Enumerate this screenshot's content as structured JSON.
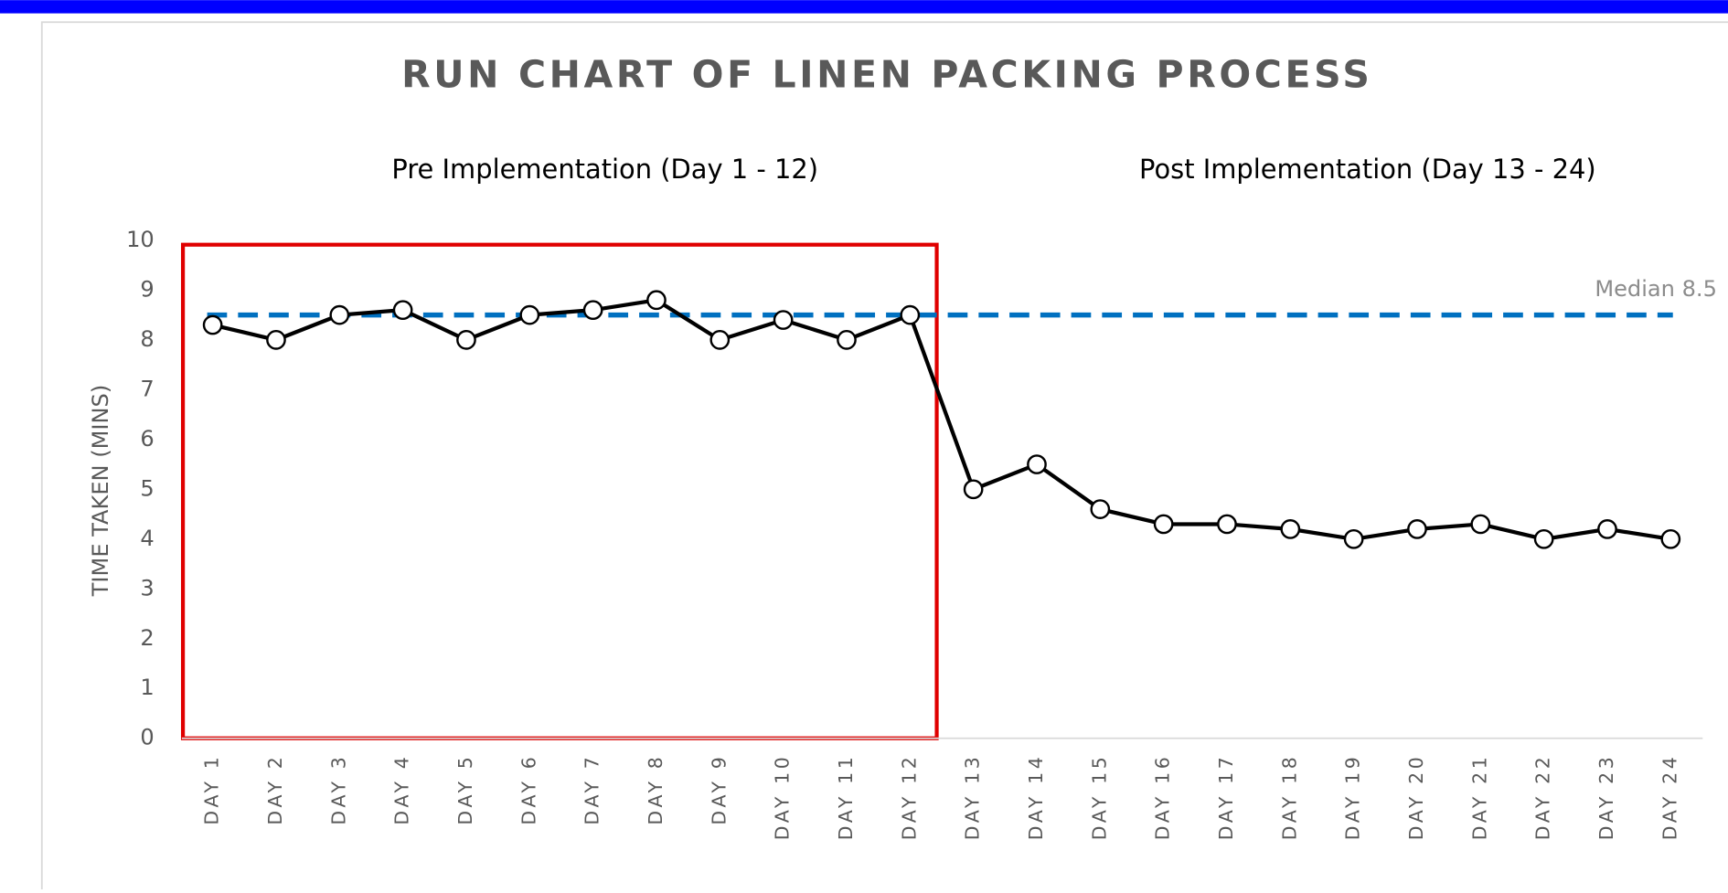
{
  "chart_data": {
    "type": "line",
    "title": "RUN CHART OF LINEN PACKING PROCESS",
    "annotations": [
      "Pre Implementation (Day 1 - 12)",
      "Post Implementation (Day 13 - 24)"
    ],
    "y_label": "TIME TAKEN (MINS)",
    "categories": [
      "DAY 1",
      "DAY 2",
      "DAY 3",
      "DAY 4",
      "DAY 5",
      "DAY 6",
      "DAY 7",
      "DAY 8",
      "DAY 9",
      "DAY 10",
      "DAY 11",
      "DAY 12",
      "DAY 13",
      "DAY 14",
      "DAY 15",
      "DAY 16",
      "DAY 17",
      "DAY 18",
      "DAY 19",
      "DAY 20",
      "DAY 21",
      "DAY 22",
      "DAY 23",
      "DAY 24"
    ],
    "values": [
      8.3,
      8.0,
      8.5,
      8.6,
      8.0,
      8.5,
      8.6,
      8.8,
      8.0,
      8.4,
      8.0,
      8.5,
      5.0,
      5.5,
      4.6,
      4.3,
      4.3,
      4.2,
      4.0,
      4.2,
      4.3,
      4.0,
      4.2,
      4.0
    ],
    "color": "#000000",
    "median": {
      "value": 8.5,
      "label": "Median 8.5",
      "color": "#0070c0"
    },
    "ylim": [
      0,
      10
    ],
    "yticks": [
      0,
      1,
      2,
      3,
      4,
      5,
      6,
      7,
      8,
      9,
      10
    ],
    "grid": false
  }
}
